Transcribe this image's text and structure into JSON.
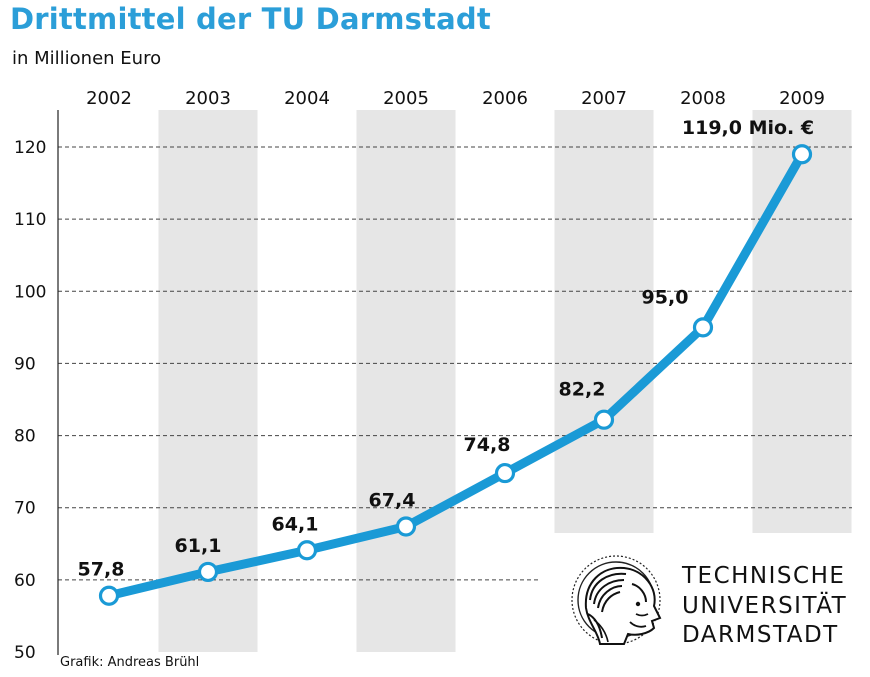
{
  "header": {
    "title": "Drittmittel der TU Darmstadt",
    "subtitle": "in Millionen Euro"
  },
  "credit": "Grafik: Andreas Brühl",
  "logo": {
    "lines": [
      "TECHNISCHE",
      "UNIVERSITÄT",
      "DARMSTADT"
    ],
    "icon": "athena-head-seal-icon"
  },
  "colors": {
    "title": "#2b9ed8",
    "line": "#1a9ad6",
    "stripe": "#e6e6e6"
  },
  "chart_data": {
    "type": "line",
    "title": "Drittmittel der TU Darmstadt",
    "subtitle": "in Millionen Euro",
    "categories": [
      "2002",
      "2003",
      "2004",
      "2005",
      "2006",
      "2007",
      "2008",
      "2009"
    ],
    "series": [
      {
        "values": [
          57.8,
          61.1,
          64.1,
          67.4,
          74.8,
          82.2,
          95.0,
          119.0
        ]
      }
    ],
    "data_labels": [
      "57,8",
      "61,1",
      "64,1",
      "67,4",
      "74,8",
      "82,2",
      "95,0",
      "119,0 Mio. €"
    ],
    "y_ticks": [
      50,
      60,
      70,
      80,
      90,
      100,
      110,
      120
    ],
    "ylim": [
      50,
      125
    ],
    "grid": true,
    "x_axis_position": "top"
  }
}
